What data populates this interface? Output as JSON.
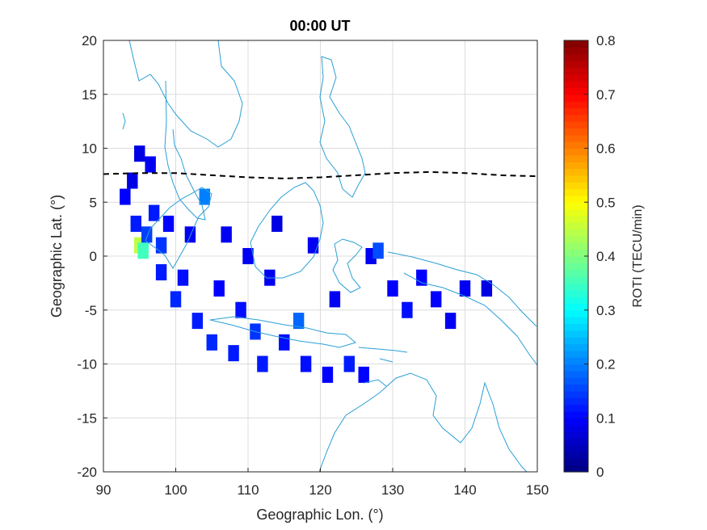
{
  "chart_data": {
    "type": "heatmap",
    "title": "00:00 UT",
    "xlabel": "Geographic Lon. (°)",
    "ylabel": "Geographic Lat. (°)",
    "xlim": [
      90,
      150
    ],
    "ylim": [
      -20,
      20
    ],
    "xticks": [
      90,
      100,
      110,
      120,
      130,
      140,
      150
    ],
    "yticks": [
      20,
      15,
      10,
      5,
      0,
      -5,
      -10,
      -15,
      -20
    ],
    "grid": true,
    "colorbar": {
      "label": "ROTI (TECU/min)",
      "range": [
        0,
        0.8
      ],
      "ticks": [
        0,
        0.1,
        0.2,
        0.3,
        0.4,
        0.5,
        0.6,
        0.7,
        0.8
      ],
      "colormap": "jet"
    },
    "dashed_line": {
      "lon": [
        90,
        95,
        100,
        105,
        110,
        115,
        120,
        125,
        130,
        135,
        140,
        145,
        150
      ],
      "lat": [
        7.6,
        7.7,
        7.7,
        7.5,
        7.3,
        7.2,
        7.3,
        7.5,
        7.7,
        7.8,
        7.7,
        7.5,
        7.4
      ]
    },
    "observations": [
      {
        "lon": 93,
        "lat": 5.5,
        "roti": 0.1
      },
      {
        "lon": 94,
        "lat": 7,
        "roti": 0.08
      },
      {
        "lon": 95,
        "lat": 9.5,
        "roti": 0.08
      },
      {
        "lon": 96.5,
        "lat": 8.5,
        "roti": 0.09
      },
      {
        "lon": 94.5,
        "lat": 3,
        "roti": 0.12
      },
      {
        "lon": 95,
        "lat": 1,
        "roti": 0.45
      },
      {
        "lon": 95.5,
        "lat": 0.5,
        "roti": 0.35
      },
      {
        "lon": 96,
        "lat": 2,
        "roti": 0.15
      },
      {
        "lon": 97,
        "lat": 4,
        "roti": 0.12
      },
      {
        "lon": 98,
        "lat": 1,
        "roti": 0.14
      },
      {
        "lon": 98,
        "lat": -1.5,
        "roti": 0.12
      },
      {
        "lon": 99,
        "lat": 3,
        "roti": 0.1
      },
      {
        "lon": 100,
        "lat": -4,
        "roti": 0.13
      },
      {
        "lon": 101,
        "lat": -2,
        "roti": 0.11
      },
      {
        "lon": 102,
        "lat": 2,
        "roti": 0.09
      },
      {
        "lon": 103,
        "lat": -6,
        "roti": 0.12
      },
      {
        "lon": 104,
        "lat": 5.5,
        "roti": 0.2
      },
      {
        "lon": 105,
        "lat": -8,
        "roti": 0.13
      },
      {
        "lon": 106,
        "lat": -3,
        "roti": 0.1
      },
      {
        "lon": 107,
        "lat": 2,
        "roti": 0.09
      },
      {
        "lon": 108,
        "lat": -9,
        "roti": 0.12
      },
      {
        "lon": 109,
        "lat": -5,
        "roti": 0.11
      },
      {
        "lon": 110,
        "lat": 0,
        "roti": 0.09
      },
      {
        "lon": 111,
        "lat": -7,
        "roti": 0.14
      },
      {
        "lon": 112,
        "lat": -10,
        "roti": 0.12
      },
      {
        "lon": 113,
        "lat": -2,
        "roti": 0.09
      },
      {
        "lon": 114,
        "lat": 3,
        "roti": 0.08
      },
      {
        "lon": 115,
        "lat": -8,
        "roti": 0.11
      },
      {
        "lon": 117,
        "lat": -6,
        "roti": 0.18
      },
      {
        "lon": 118,
        "lat": -10,
        "roti": 0.11
      },
      {
        "lon": 119,
        "lat": 1,
        "roti": 0.09
      },
      {
        "lon": 121,
        "lat": -11,
        "roti": 0.1
      },
      {
        "lon": 122,
        "lat": -4,
        "roti": 0.09
      },
      {
        "lon": 124,
        "lat": -10,
        "roti": 0.12
      },
      {
        "lon": 126,
        "lat": -11,
        "roti": 0.1
      },
      {
        "lon": 127,
        "lat": 0,
        "roti": 0.09
      },
      {
        "lon": 128,
        "lat": 0.5,
        "roti": 0.16
      },
      {
        "lon": 130,
        "lat": -3,
        "roti": 0.1
      },
      {
        "lon": 132,
        "lat": -5,
        "roti": 0.11
      },
      {
        "lon": 134,
        "lat": -2,
        "roti": 0.1
      },
      {
        "lon": 136,
        "lat": -4,
        "roti": 0.1
      },
      {
        "lon": 138,
        "lat": -6,
        "roti": 0.09
      },
      {
        "lon": 140,
        "lat": -3,
        "roti": 0.09
      },
      {
        "lon": 143,
        "lat": -3,
        "roti": 0.08
      }
    ]
  }
}
